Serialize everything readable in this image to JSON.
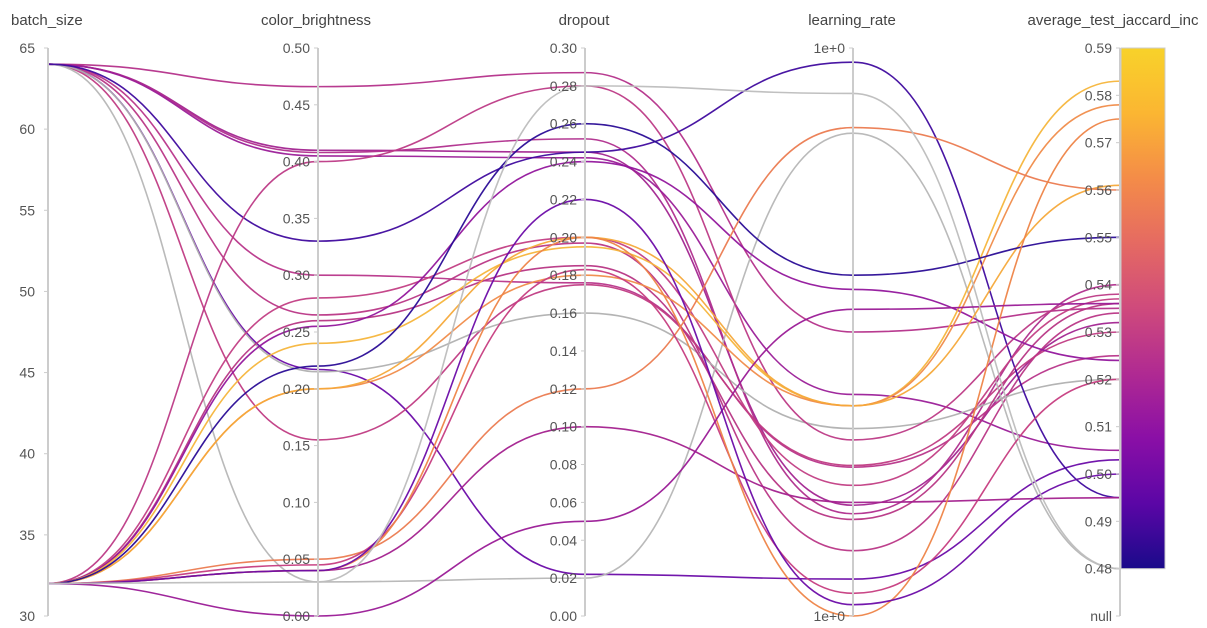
{
  "chart_data": {
    "type": "parallel_coordinates",
    "axes": [
      {
        "label": "batch_size",
        "ticks": [
          "65",
          "60",
          "55",
          "50",
          "45",
          "40",
          "35",
          "30"
        ],
        "range": [
          30,
          65
        ]
      },
      {
        "label": "color_brightness",
        "ticks": [
          "0.50",
          "0.45",
          "0.40",
          "0.35",
          "0.30",
          "0.25",
          "0.20",
          "0.15",
          "0.10",
          "0.05",
          "0.00"
        ],
        "range": [
          0,
          0.5
        ]
      },
      {
        "label": "dropout",
        "ticks": [
          "0.30",
          "0.28",
          "0.26",
          "0.24",
          "0.22",
          "0.20",
          "0.18",
          "0.16",
          "0.14",
          "0.12",
          "0.10",
          "0.08",
          "0.06",
          "0.04",
          "0.02",
          "0.00"
        ],
        "range": [
          0,
          0.3
        ]
      },
      {
        "label": "learning_rate",
        "ticks": [
          "1e+0",
          "1e+0"
        ],
        "scale": "log",
        "range": [
          "1e+0",
          "1e+0"
        ]
      },
      {
        "label": "average_test_jaccard_inc",
        "ticks": [
          "0.59",
          "0.58",
          "0.57",
          "0.56",
          "0.55",
          "0.54",
          "0.53",
          "0.52",
          "0.51",
          "0.50",
          "0.49",
          "0.48",
          "null"
        ],
        "range": [
          0.48,
          0.59
        ]
      }
    ],
    "colorbar": {
      "min": 0.48,
      "max": 0.59,
      "colors": [
        "#1a0a8a",
        "#5b06a6",
        "#8a0fa6",
        "#b02a92",
        "#cf4a7c",
        "#e56a62",
        "#f48c48",
        "#fbb632",
        "#f8d22a"
      ]
    },
    "runs": [
      {
        "values": [
          64,
          0.466,
          0.287,
          0.5,
          0.535
        ],
        "color": "#b4308a"
      },
      {
        "values": [
          64,
          0.41,
          0.245,
          0.195,
          0.532
        ],
        "color": "#a22490"
      },
      {
        "values": [
          64,
          0.408,
          0.252,
          0.18,
          0.54
        ],
        "color": "#b02e8d"
      },
      {
        "values": [
          64,
          0.405,
          0.242,
          0.39,
          0.505
        ],
        "color": "#9b1d98"
      },
      {
        "values": [
          64,
          0.3,
          0.176,
          0.262,
          0.525
        ],
        "color": "#b8358a"
      },
      {
        "values": [
          64,
          0.265,
          0.197,
          0.115,
          0.534
        ],
        "color": "#b93686"
      },
      {
        "values": [
          64,
          0.217,
          0.022,
          0.065,
          0.503
        ],
        "color": "#6a0aa8"
      },
      {
        "values": [
          64,
          0.155,
          0.175,
          0.265,
          0.53
        ],
        "color": "#c03b83"
      },
      {
        "values": [
          64,
          0.03,
          0.02,
          0.85,
          0.48
        ],
        "color": "#b6b6b6"
      },
      {
        "values": [
          64,
          0.215,
          0.16,
          0.33,
          0.52
        ],
        "color": "#b0b0b0"
      },
      {
        "values": [
          64,
          0.33,
          0.245,
          0.975,
          0.495
        ],
        "color": "#3f0a9e"
      },
      {
        "values": [
          32,
          0.4,
          0.28,
          0.31,
          0.538
        ],
        "color": "#bd3a86"
      },
      {
        "values": [
          32,
          0.28,
          0.2,
          0.23,
          0.537
        ],
        "color": "#c23e84"
      },
      {
        "values": [
          32,
          0.26,
          0.185,
          0.17,
          0.536
        ],
        "color": "#b73584"
      },
      {
        "values": [
          32,
          0.255,
          0.24,
          0.575,
          0.524
        ],
        "color": "#92169c"
      },
      {
        "values": [
          32,
          0.24,
          0.195,
          0.37,
          0.583
        ],
        "color": "#f6b53b"
      },
      {
        "values": [
          32,
          0.2,
          0.18,
          0.37,
          0.578
        ],
        "color": "#f08c4a"
      },
      {
        "values": [
          32,
          0.2,
          0.2,
          0.37,
          0.561
        ],
        "color": "#f6a93a"
      },
      {
        "values": [
          32,
          0.22,
          0.26,
          0.6,
          0.55
        ],
        "color": "#2a0c96"
      },
      {
        "values": [
          32,
          0.05,
          0.12,
          0.86,
          0.56
        ],
        "color": "#eb7b50"
      },
      {
        "values": [
          32,
          0.04,
          0.1,
          0.2,
          0.495
        ],
        "color": "#a3208e"
      },
      {
        "values": [
          32,
          0.045,
          0.183,
          0.04,
          0.52
        ],
        "color": "#c63c80"
      },
      {
        "values": [
          32,
          0.04,
          0.2,
          0.0,
          0.575
        ],
        "color": "#ee8447"
      },
      {
        "values": [
          32,
          0.0,
          0.05,
          0.54,
          0.536
        ],
        "color": "#9a1a96"
      },
      {
        "values": [
          32,
          0.04,
          0.22,
          0.02,
          0.5
        ],
        "color": "#6c0ba8"
      },
      {
        "values": [
          32,
          0.03,
          0.28,
          0.92,
          0.48
        ],
        "color": "#bdbdbd"
      }
    ]
  }
}
